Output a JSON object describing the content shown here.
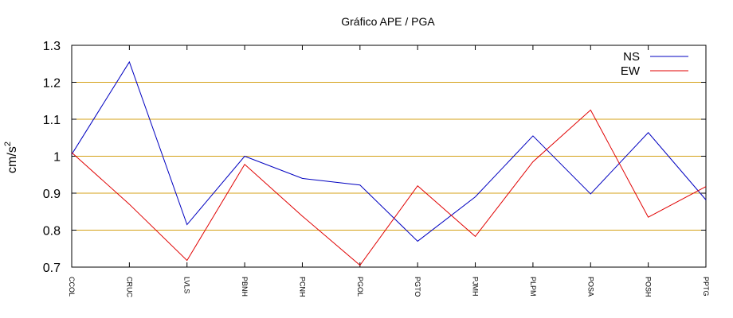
{
  "chart_data": {
    "type": "line",
    "title": "Gráfico  APE / PGA",
    "ylabel": "cm/s",
    "ylabel_sup": "2",
    "categories": [
      "CCOL",
      "CRUC",
      "LVLS",
      "PBNH",
      "PCNH",
      "PGOL",
      "PGTO",
      "PJMH",
      "PLPM",
      "POSA",
      "POSH",
      "PPTG"
    ],
    "ylim": [
      0.7,
      1.3
    ],
    "yticks": [
      0.7,
      0.8,
      0.9,
      1.0,
      1.1,
      1.2,
      1.3
    ],
    "ytick_labels": [
      "0.7",
      "0.8",
      "0.9",
      "1",
      "1.1",
      "1.2",
      "1.3"
    ],
    "grid": "horizontal",
    "grid_color": "#d4a017",
    "legend_position": "top-right",
    "series": [
      {
        "name": "NS",
        "color": "#0000c0",
        "values": [
          1.005,
          1.255,
          0.815,
          1.0,
          0.94,
          0.922,
          0.77,
          0.89,
          1.055,
          0.898,
          1.064,
          0.882
        ]
      },
      {
        "name": "EW",
        "color": "#e00000",
        "values": [
          1.01,
          0.87,
          0.718,
          0.978,
          0.838,
          0.705,
          0.92,
          0.783,
          0.985,
          1.125,
          0.835,
          0.918
        ]
      }
    ]
  }
}
